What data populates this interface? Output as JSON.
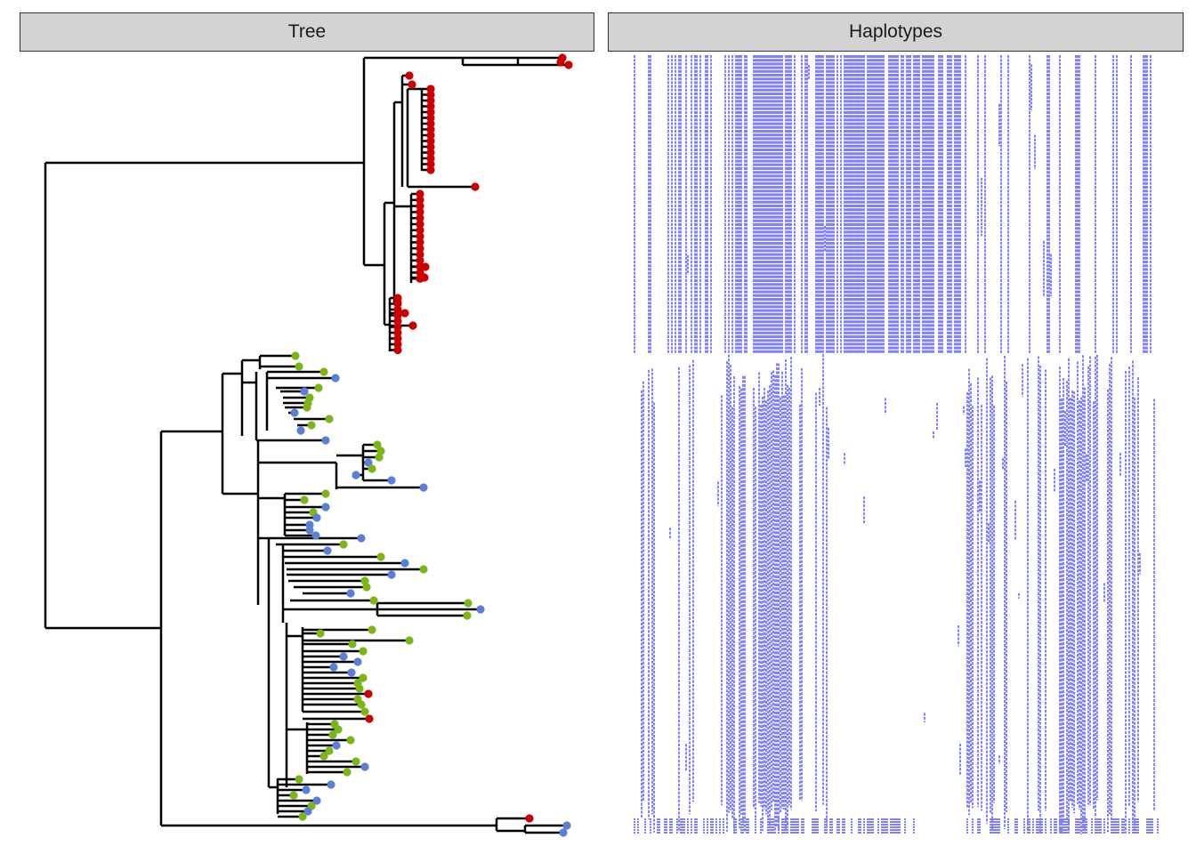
{
  "panels": {
    "tree_title": "Tree",
    "haplotypes_title": "Haplotypes"
  },
  "colors": {
    "group_red": "#cc0000",
    "group_green": "#7cb518",
    "group_blue": "#5b7fd6",
    "branch": "#000000",
    "haplotype": "#0000ff",
    "strip_bg": "#d3d3d3"
  },
  "legend": "none",
  "grid": false
}
